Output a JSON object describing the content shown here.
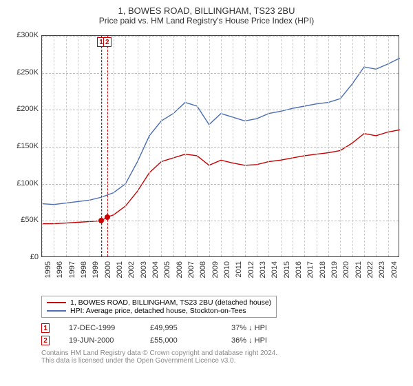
{
  "title": "1, BOWES ROAD, BILLINGHAM, TS23 2BU",
  "subtitle": "Price paid vs. HM Land Registry's House Price Index (HPI)",
  "chart": {
    "type": "line",
    "background_color": "#ffffff",
    "grid_color": "#cccccc",
    "border_color": "#444444",
    "xlim": [
      1995,
      2025
    ],
    "ylim": [
      0,
      300000
    ],
    "ytick_step": 50000,
    "yticks": [
      "£0",
      "£50K",
      "£100K",
      "£150K",
      "£200K",
      "£250K",
      "£300K"
    ],
    "xticks": [
      1995,
      1996,
      1997,
      1998,
      1999,
      2000,
      2001,
      2002,
      2003,
      2004,
      2005,
      2006,
      2007,
      2008,
      2009,
      2010,
      2011,
      2012,
      2013,
      2014,
      2015,
      2016,
      2017,
      2018,
      2019,
      2020,
      2021,
      2022,
      2023,
      2024
    ],
    "label_fontsize": 11,
    "title_fontsize": 13,
    "line_width": 1.4,
    "series": [
      {
        "name": "price_paid",
        "color": "#c60000",
        "legend": "1, BOWES ROAD, BILLINGHAM, TS23 2BU (detached house)",
        "points": [
          [
            1995,
            46000
          ],
          [
            1996,
            46000
          ],
          [
            1997,
            47000
          ],
          [
            1998,
            48000
          ],
          [
            1999,
            49000
          ],
          [
            1999.96,
            49995
          ],
          [
            2000.47,
            55000
          ],
          [
            2001,
            58000
          ],
          [
            2002,
            70000
          ],
          [
            2003,
            90000
          ],
          [
            2004,
            115000
          ],
          [
            2005,
            130000
          ],
          [
            2006,
            135000
          ],
          [
            2007,
            140000
          ],
          [
            2008,
            138000
          ],
          [
            2009,
            125000
          ],
          [
            2010,
            132000
          ],
          [
            2011,
            128000
          ],
          [
            2012,
            125000
          ],
          [
            2013,
            126000
          ],
          [
            2014,
            130000
          ],
          [
            2015,
            132000
          ],
          [
            2016,
            135000
          ],
          [
            2017,
            138000
          ],
          [
            2018,
            140000
          ],
          [
            2019,
            142000
          ],
          [
            2020,
            145000
          ],
          [
            2021,
            155000
          ],
          [
            2022,
            168000
          ],
          [
            2023,
            165000
          ],
          [
            2024,
            170000
          ],
          [
            2025,
            173000
          ]
        ]
      },
      {
        "name": "hpi",
        "color": "#4a6db5",
        "legend": "HPI: Average price, detached house, Stockton-on-Tees",
        "points": [
          [
            1995,
            73000
          ],
          [
            1996,
            72000
          ],
          [
            1997,
            74000
          ],
          [
            1998,
            76000
          ],
          [
            1999,
            78000
          ],
          [
            2000,
            82000
          ],
          [
            2001,
            88000
          ],
          [
            2002,
            100000
          ],
          [
            2003,
            130000
          ],
          [
            2004,
            165000
          ],
          [
            2005,
            185000
          ],
          [
            2006,
            195000
          ],
          [
            2007,
            210000
          ],
          [
            2008,
            205000
          ],
          [
            2009,
            180000
          ],
          [
            2010,
            195000
          ],
          [
            2011,
            190000
          ],
          [
            2012,
            185000
          ],
          [
            2013,
            188000
          ],
          [
            2014,
            195000
          ],
          [
            2015,
            198000
          ],
          [
            2016,
            202000
          ],
          [
            2017,
            205000
          ],
          [
            2018,
            208000
          ],
          [
            2019,
            210000
          ],
          [
            2020,
            215000
          ],
          [
            2021,
            235000
          ],
          [
            2022,
            258000
          ],
          [
            2023,
            255000
          ],
          [
            2024,
            262000
          ],
          [
            2025,
            270000
          ]
        ]
      }
    ],
    "markers": [
      {
        "n": "1",
        "x": 1999.96,
        "y": 49995
      },
      {
        "n": "2",
        "x": 2000.47,
        "y": 55000
      }
    ]
  },
  "legend_title": "",
  "transactions": [
    {
      "n": "1",
      "date": "17-DEC-1999",
      "price": "£49,995",
      "delta": "37% ↓ HPI"
    },
    {
      "n": "2",
      "date": "19-JUN-2000",
      "price": "£55,000",
      "delta": "36% ↓ HPI"
    }
  ],
  "footer1": "Contains HM Land Registry data © Crown copyright and database right 2024.",
  "footer2": "This data is licensed under the Open Government Licence v3.0."
}
